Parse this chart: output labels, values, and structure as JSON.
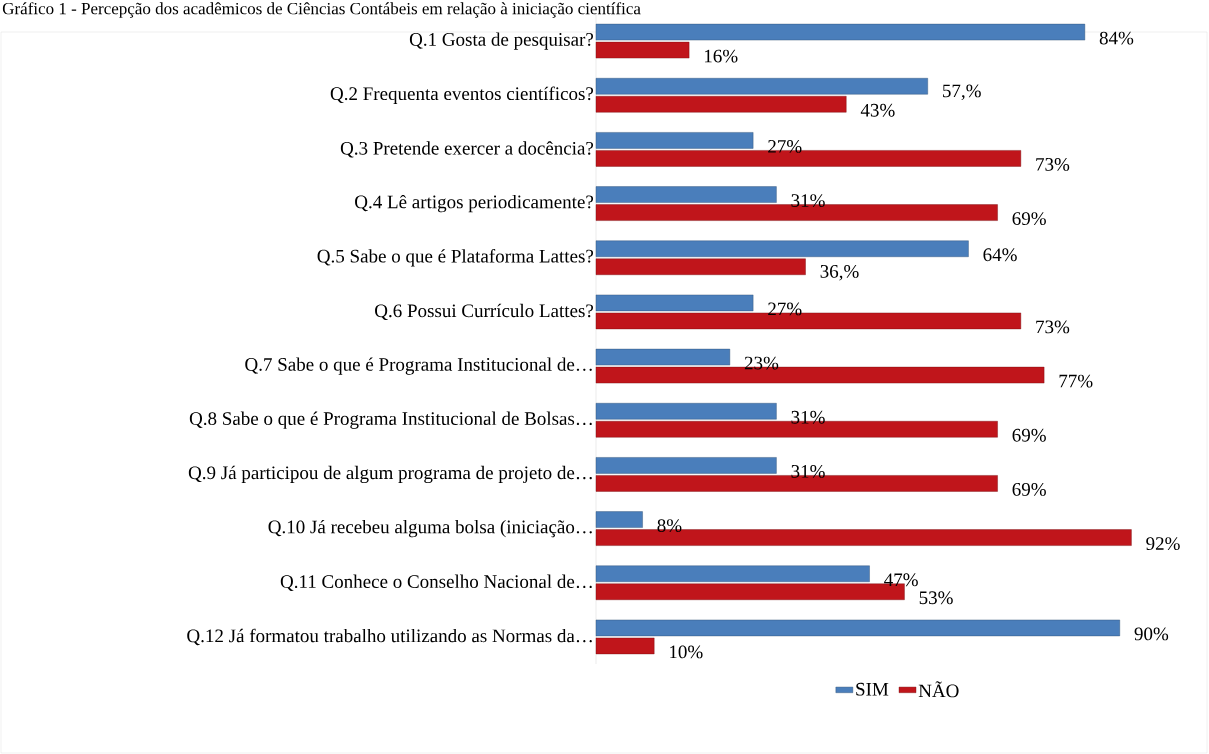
{
  "chart_data": {
    "type": "bar",
    "orientation": "horizontal",
    "title": "Gráfico 1 - Percepção dos acadêmicos de Ciências Contábeis em relação à iniciação científica",
    "categories": [
      "Q.1 Gosta de pesquisar?",
      "Q.2 Frequenta eventos científicos?",
      "Q.3 Pretende  exercer a docência?",
      "Q.4 Lê artigos periodicamente?",
      "Q.5 Sabe o que é Plataforma Lattes?",
      "Q.6 Possui Currículo Lattes?",
      "Q.7 Sabe o que é Programa Institucional de…",
      "Q.8 Sabe o que é Programa Institucional de Bolsas…",
      "Q.9 Já participou de algum programa de projeto de…",
      "Q.10 Já recebeu alguma bolsa (iniciação…",
      "Q.11 Conhece o Conselho Nacional de…",
      "Q.12 Já formatou trabalho utilizando as Normas da…"
    ],
    "series": [
      {
        "name": "SIM",
        "color": "#4a7ebb",
        "values": [
          84,
          57,
          27,
          31,
          64,
          27,
          23,
          31,
          31,
          8,
          47,
          90
        ],
        "value_labels": [
          "84%",
          "57,%",
          "27%",
          "31%",
          "64%",
          "27%",
          "23%",
          "31%",
          "31%",
          "8%",
          "47%",
          "90%"
        ]
      },
      {
        "name": "NÃO",
        "color": "#c0151b",
        "values": [
          16,
          43,
          73,
          69,
          36,
          73,
          77,
          69,
          69,
          92,
          53,
          10
        ],
        "value_labels": [
          "16%",
          "43%",
          "73%",
          "69%",
          "36,%",
          "73%",
          "77%",
          "69%",
          "69%",
          "92%",
          "53%",
          "10%"
        ]
      }
    ],
    "legend": "bottom"
  }
}
